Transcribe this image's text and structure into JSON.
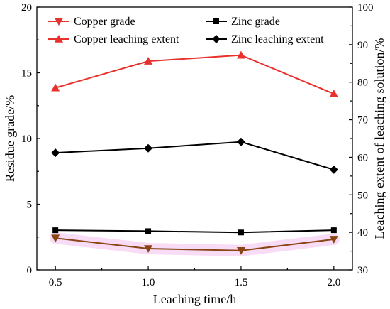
{
  "chart_data": {
    "type": "line",
    "x": [
      0.5,
      1.0,
      1.5,
      2.0
    ],
    "x_tick_labels": [
      "0.5",
      "1.0",
      "1.5",
      "2.0"
    ],
    "xlabel": "Leaching time/h",
    "ylabel_left": "Residue grade/%",
    "ylabel_right": "Leaching extent of leaching solution/%",
    "ylim_left": [
      0,
      20
    ],
    "ylim_right": [
      30,
      100
    ],
    "y_left_tick_labels": [
      "0",
      "5",
      "10",
      "15",
      "20"
    ],
    "y_left_ticks": [
      0,
      5,
      10,
      15,
      20
    ],
    "y_right_tick_labels": [
      "30",
      "40",
      "50",
      "60",
      "70",
      "80",
      "90",
      "100"
    ],
    "y_right_ticks": [
      30,
      40,
      50,
      60,
      70,
      80,
      90,
      100
    ],
    "grid": false,
    "legend_position": "top",
    "series": [
      {
        "name": "Copper grade",
        "axis": "left",
        "marker": "triangle-down",
        "color": "#8b4513",
        "legend_color": "#e8302c",
        "values": [
          2.42,
          1.62,
          1.47,
          2.33
        ]
      },
      {
        "name": "Zinc grade",
        "axis": "left",
        "marker": "square",
        "color": "#000000",
        "legend_color": "#000000",
        "values": [
          3.02,
          2.95,
          2.85,
          3.02
        ]
      },
      {
        "name": "Copper leaching extent",
        "axis": "right",
        "marker": "triangle-up",
        "color": "#e8302c",
        "legend_color": "#e8302c",
        "values": [
          78.5,
          85.6,
          87.2,
          76.9
        ]
      },
      {
        "name": "Zinc leaching extent",
        "axis": "right",
        "marker": "diamond",
        "color": "#000000",
        "legend_color": "#000000",
        "values": [
          61.2,
          62.4,
          64.1,
          56.7
        ]
      }
    ]
  }
}
